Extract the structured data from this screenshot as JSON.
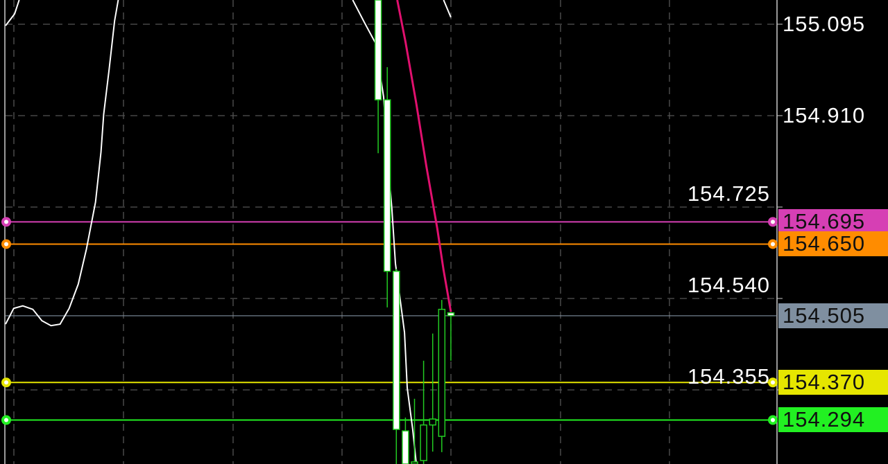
{
  "chart_data": {
    "type": "candlestick",
    "ylim": [
      154.205,
      155.144
    ],
    "y_ticks": [
      "155.095",
      "154.910",
      "154.725",
      "154.540",
      "154.355"
    ],
    "grid": true,
    "bar_index_range": [
      0,
      49
    ],
    "candles": [
      {
        "i": 41,
        "o": 155.2,
        "h": 155.25,
        "l": 154.834,
        "c": 154.942
      },
      {
        "i": 42,
        "o": 154.942,
        "h": 155.008,
        "l": 154.522,
        "c": 154.595
      },
      {
        "i": 43,
        "o": 154.595,
        "h": 154.6,
        "l": 154.1,
        "c": 154.275
      },
      {
        "i": 44,
        "o": 154.272,
        "h": 154.299,
        "l": 154.1,
        "c": 154.15
      },
      {
        "i": 45,
        "o": 154.15,
        "h": 154.337,
        "l": 154.1,
        "c": 154.209
      },
      {
        "i": 46,
        "o": 154.212,
        "h": 154.414,
        "l": 154.1,
        "c": 154.284
      },
      {
        "i": 47,
        "o": 154.284,
        "h": 154.469,
        "l": 154.23,
        "c": 154.296
      },
      {
        "i": 48,
        "o": 154.261,
        "h": 154.537,
        "l": 154.229,
        "c": 154.518
      },
      {
        "i": 49,
        "o": 154.511,
        "h": 154.511,
        "l": 154.414,
        "c": 154.505
      }
    ],
    "indicator_lines": [
      {
        "color": "#ffffff",
        "segments": [
          [
            [
              0,
              155.092
            ],
            [
              1,
              155.116
            ],
            [
              1.5,
              155.144
            ]
          ],
          [
            [
              0,
              154.488
            ],
            [
              0.9,
              154.52
            ],
            [
              1.9,
              154.525
            ],
            [
              3,
              154.518
            ],
            [
              4,
              154.495
            ],
            [
              5,
              154.485
            ],
            [
              6,
              154.488
            ],
            [
              7,
              154.52
            ],
            [
              8,
              154.569
            ],
            [
              8.9,
              154.64
            ],
            [
              9.9,
              154.735
            ],
            [
              10.5,
              154.836
            ],
            [
              10.8,
              154.913
            ],
            [
              11.4,
              155.004
            ],
            [
              12,
              155.102
            ],
            [
              12.4,
              155.144
            ]
          ],
          [
            [
              38.2,
              155.144
            ],
            [
              39.5,
              155.098
            ],
            [
              40.7,
              155.057
            ],
            [
              41.6,
              154.948
            ],
            [
              42.1,
              154.808
            ],
            [
              42.5,
              154.724
            ],
            [
              42.9,
              154.611
            ],
            [
              43.5,
              154.527
            ],
            [
              43.9,
              154.471
            ],
            [
              44.2,
              154.359
            ],
            [
              44.8,
              154.275
            ],
            [
              45.2,
              154.205
            ]
          ],
          [
            [
              48.2,
              155.144
            ],
            [
              49,
              155.109
            ]
          ]
        ]
      },
      {
        "color": "#e0106e",
        "segments": [
          [
            [
              43.1,
              155.144
            ],
            [
              44,
              155.06
            ],
            [
              45.2,
              154.934
            ],
            [
              46.3,
              154.808
            ],
            [
              47.5,
              154.682
            ],
            [
              48.2,
              154.597
            ],
            [
              49,
              154.513
            ]
          ]
        ]
      }
    ],
    "levels": [
      {
        "label": "154.695",
        "price": 154.695,
        "color": "#d63fb4",
        "handle": true
      },
      {
        "label": "154.650",
        "price": 154.65,
        "color": "#ff8c00",
        "handle": true
      },
      {
        "label": "154.505",
        "price": 154.505,
        "color": "#7f8fa0",
        "handle": false
      },
      {
        "label": "154.370",
        "price": 154.37,
        "color": "#e6e600",
        "handle": true
      },
      {
        "label": "154.294",
        "price": 154.294,
        "color": "#22f022",
        "handle": true
      }
    ],
    "colors": {
      "bear_body": "#ffffff",
      "candle_outline": "#22cc22",
      "grid": "#555555",
      "axis": "#cccccc"
    }
  }
}
